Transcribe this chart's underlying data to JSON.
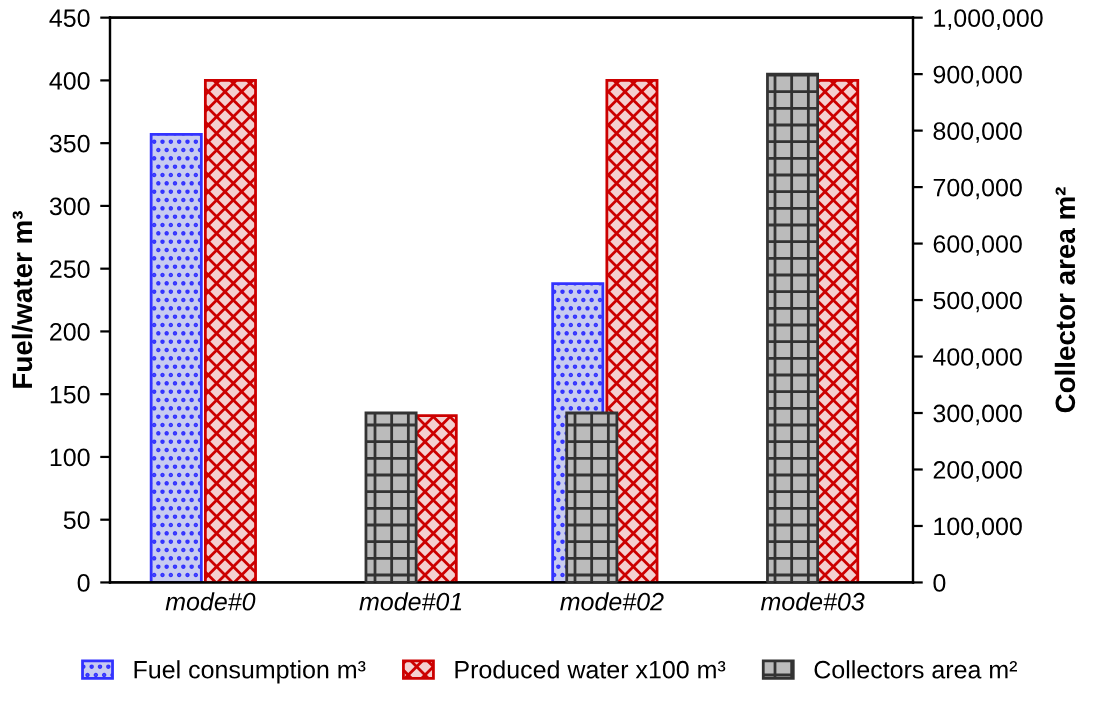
{
  "chart_data": {
    "type": "bar",
    "categories": [
      "mode#0",
      "mode#01",
      "mode#02",
      "mode#03"
    ],
    "ylabel": "Fuel/water m³",
    "y2label": "Collector area m²",
    "series": [
      {
        "name": "Fuel consumption m³",
        "color": "#3333ff",
        "values": [
          357,
          null,
          238,
          null
        ]
      },
      {
        "name": "Produced water x100 m³",
        "color": "#cc0000",
        "values": [
          400,
          133,
          400,
          400
        ]
      },
      {
        "name": "Collectors area m²",
        "color": "#333333",
        "axis": "y2",
        "values": [
          null,
          300000,
          300000,
          900000
        ]
      }
    ],
    "ylim": [
      0,
      450
    ],
    "yticks": [
      0,
      50,
      100,
      150,
      200,
      250,
      300,
      350,
      400,
      450
    ],
    "y2lim": [
      0,
      1000000
    ],
    "y2ticks": [
      0,
      {
        "value": 100000,
        "label": "100,000"
      },
      {
        "value": 200000,
        "label": "200,000"
      },
      {
        "value": 300000,
        "label": "300,000"
      },
      {
        "value": 400000,
        "label": "400,000"
      },
      {
        "value": 500000,
        "label": "500,000"
      },
      {
        "value": 600000,
        "label": "600,000"
      },
      {
        "value": 700000,
        "label": "700,000"
      },
      {
        "value": 800000,
        "label": "800,000"
      },
      {
        "value": 900000,
        "label": "900,000"
      },
      {
        "value": 1000000,
        "label": "1,000,000"
      }
    ],
    "grid": false,
    "legend": "bottom"
  }
}
